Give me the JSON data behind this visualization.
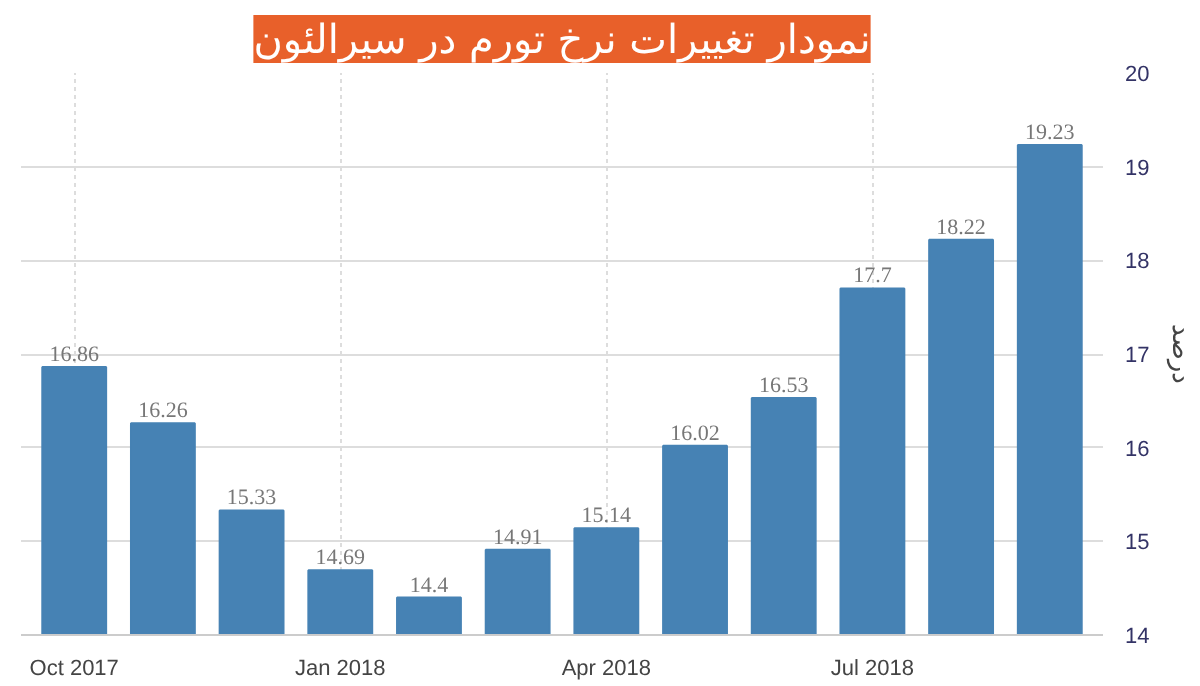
{
  "chart_data": {
    "type": "bar",
    "title": "نمودار تغییرات نرخ تورم در سیرالئون",
    "ylabel": "درصد",
    "categories": [
      "Oct 2017",
      null,
      null,
      "Jan 2018",
      null,
      null,
      "Apr 2018",
      null,
      null,
      "Jul 2018",
      null,
      null
    ],
    "values": [
      16.86,
      16.26,
      15.33,
      14.69,
      14.4,
      14.91,
      15.14,
      16.02,
      16.53,
      17.7,
      18.22,
      19.23
    ],
    "color": "#4682b4",
    "ylim": [
      14,
      20
    ],
    "yticks": [
      14,
      15,
      16,
      17,
      18,
      19,
      20
    ],
    "grid": true,
    "data_labels": true
  }
}
